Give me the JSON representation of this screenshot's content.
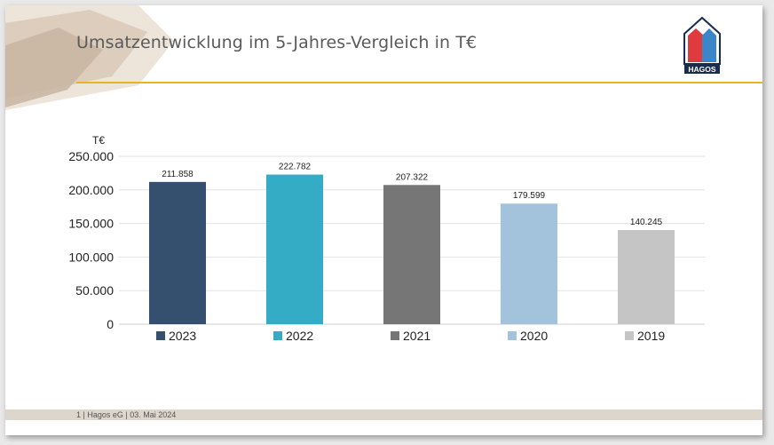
{
  "slide": {
    "title": "Umsatzentwicklung im 5-Jahres-Vergleich in T€",
    "footer": "1 | Hagos eG | 03. Mai 2024"
  },
  "logo": {
    "text": "HAGOS",
    "colors": {
      "left_house": "#e03a3e",
      "right_house": "#3a86c8",
      "outline": "#1a2c4e"
    }
  },
  "colors": {
    "accent_rule": "#e8b326",
    "footer_band": "#ddd6cc"
  },
  "chart_data": {
    "type": "bar",
    "ylabel": "T€",
    "ylim": [
      0,
      250000
    ],
    "yticks": [
      0,
      50000,
      100000,
      150000,
      200000,
      250000
    ],
    "ytick_labels": [
      "0",
      "50.000",
      "100.000",
      "150.000",
      "200.000",
      "250.000"
    ],
    "grid": true,
    "legend_position": "bottom",
    "categories": [
      "2023",
      "2022",
      "2021",
      "2020",
      "2019"
    ],
    "values": [
      211858,
      222782,
      207322,
      179599,
      140245
    ],
    "data_labels": [
      "211.858",
      "222.782",
      "207.322",
      "179.599",
      "140.245"
    ],
    "colors": [
      "#34506e",
      "#35acc5",
      "#767676",
      "#a3c3dc",
      "#c5c5c5"
    ]
  }
}
